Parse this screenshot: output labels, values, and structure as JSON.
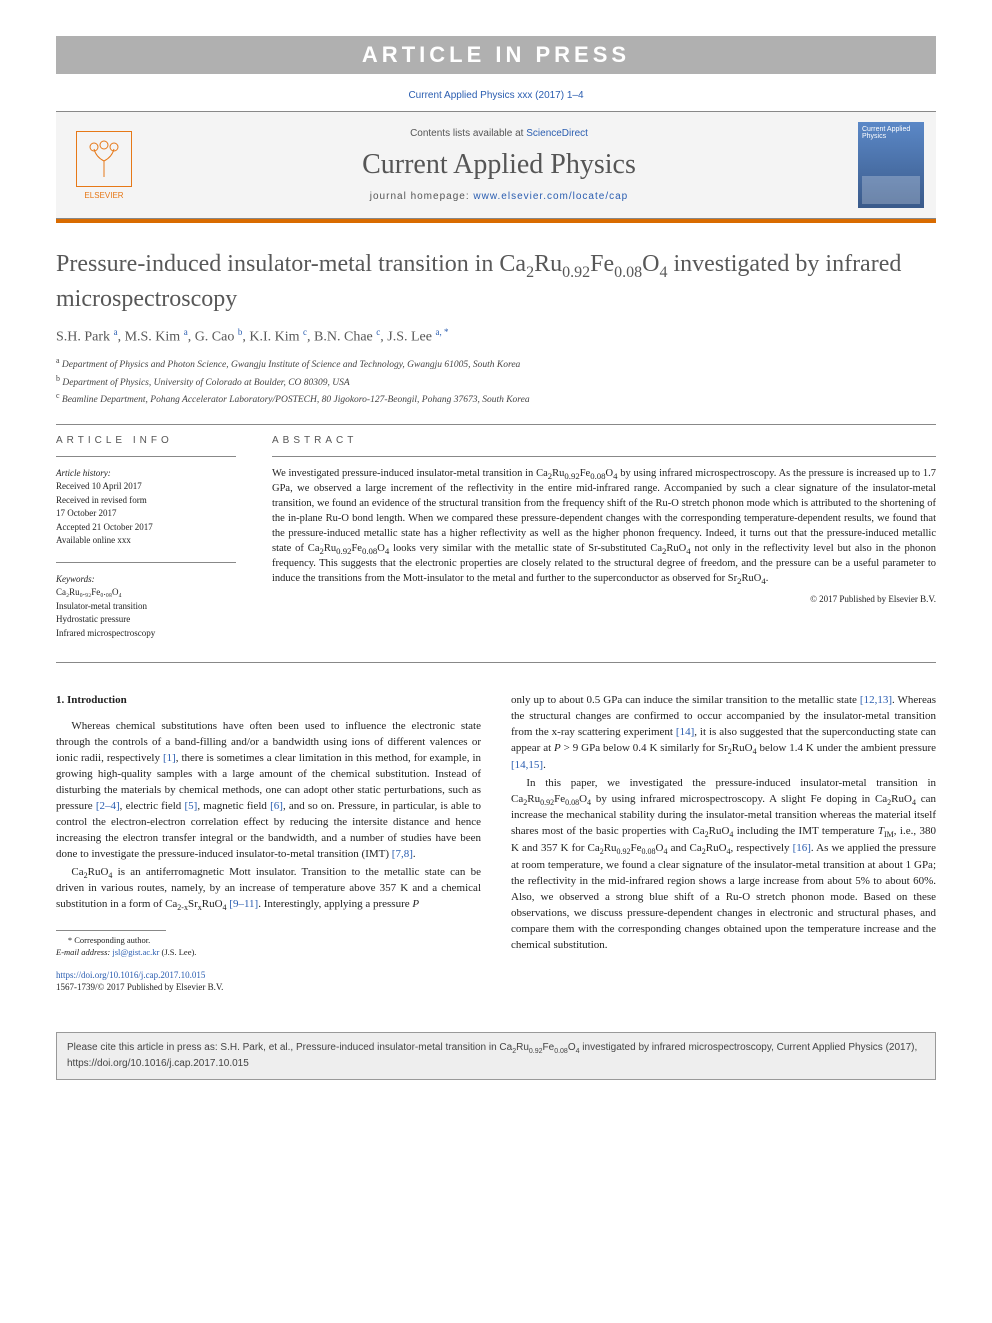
{
  "banner": "ARTICLE IN PRESS",
  "top_citation": "Current Applied Physics xxx (2017) 1–4",
  "header": {
    "contents_prefix": "Contents lists available at ",
    "contents_link": "ScienceDirect",
    "journal": "Current Applied Physics",
    "homepage_prefix": "journal homepage: ",
    "homepage_link": "www.elsevier.com/locate/cap",
    "publisher": "ELSEVIER",
    "cover_title": "Current Applied Physics"
  },
  "title_html": "Pressure-induced insulator-metal transition in Ca<sub>2</sub>Ru<sub>0.92</sub>Fe<sub>0.08</sub>O<sub>4</sub> investigated by infrared microspectroscopy",
  "authors_html": "S.H. Park <sup>a</sup>, M.S. Kim <sup>a</sup>, G. Cao <sup>b</sup>, K.I. Kim <sup>c</sup>, B.N. Chae <sup>c</sup>, J.S. Lee <sup>a, *</sup>",
  "affiliations": [
    {
      "sup": "a",
      "text": "Department of Physics and Photon Science, Gwangju Institute of Science and Technology, Gwangju 61005, South Korea"
    },
    {
      "sup": "b",
      "text": "Department of Physics, University of Colorado at Boulder, CO 80309, USA"
    },
    {
      "sup": "c",
      "text": "Beamline Department, Pohang Accelerator Laboratory/POSTECH, 80 Jigokoro-127-Beongil, Pohang 37673, South Korea"
    }
  ],
  "article_info": {
    "label": "ARTICLE INFO",
    "history_hd": "Article history:",
    "history": [
      "Received 10 April 2017",
      "Received in revised form",
      "17 October 2017",
      "Accepted 21 October 2017",
      "Available online xxx"
    ],
    "keywords_hd": "Keywords:",
    "keywords": [
      "Ca₂Ru₀.₉₂Fe₀.₀₈O₄",
      "Insulator-metal transition",
      "Hydrostatic pressure",
      "Infrared microspectroscopy"
    ]
  },
  "abstract": {
    "label": "ABSTRACT",
    "text_html": "We investigated pressure-induced insulator-metal transition in Ca<sub>2</sub>Ru<sub>0.92</sub>Fe<sub>0.08</sub>O<sub>4</sub> by using infrared microspectroscopy. As the pressure is increased up to 1.7 GPa, we observed a large increment of the reflectivity in the entire mid-infrared range. Accompanied by such a clear signature of the insulator-metal transition, we found an evidence of the structural transition from the frequency shift of the Ru-O stretch phonon mode which is attributed to the shortening of the in-plane Ru-O bond length. When we compared these pressure-dependent changes with the corresponding temperature-dependent results, we found that the pressure-induced metallic state has a higher reflectivity as well as the higher phonon frequency. Indeed, it turns out that the pressure-induced metallic state of Ca<sub>2</sub>Ru<sub>0.92</sub>Fe<sub>0.08</sub>O<sub>4</sub> looks very similar with the metallic state of Sr-substituted Ca<sub>2</sub>RuO<sub>4</sub> not only in the reflectivity level but also in the phonon frequency. This suggests that the electronic properties are closely related to the structural degree of freedom, and the pressure can be a useful parameter to induce the transitions from the Mott-insulator to the metal and further to the superconductor as observed for Sr<sub>2</sub>RuO<sub>4</sub>.",
    "copyright": "© 2017 Published by Elsevier B.V."
  },
  "section1": {
    "heading": "1. Introduction",
    "p1_html": "Whereas chemical substitutions have often been used to influence the electronic state through the controls of a band-filling and/or a bandwidth using ions of different valences or ionic radii, respectively <span class=\"ref\">[1]</span>, there is sometimes a clear limitation in this method, for example, in growing high-quality samples with a large amount of the chemical substitution. Instead of disturbing the materials by chemical methods, one can adopt other static perturbations, such as pressure <span class=\"ref\">[2–4]</span>, electric field <span class=\"ref\">[5]</span>, magnetic field <span class=\"ref\">[6]</span>, and so on. Pressure, in particular, is able to control the electron-electron correlation effect by reducing the intersite distance and hence increasing the electron transfer integral or the bandwidth, and a number of studies have been done to investigate the pressure-induced insulator-to-metal transition (IMT) <span class=\"ref\">[7,8]</span>.",
    "p2_html": "Ca<sub>2</sub>RuO<sub>4</sub> is an antiferromagnetic Mott insulator. Transition to the metallic state can be driven in various routes, namely, by an increase of temperature above 357 K and a chemical substitution in a form of Ca<sub>2-x</sub>Sr<sub>x</sub>RuO<sub>4</sub> <span class=\"ref\">[9–11]</span>. Interestingly, applying a pressure <i>P</i>",
    "p3_html": "only up to about 0.5 GPa can induce the similar transition to the metallic state <span class=\"ref\">[12,13]</span>. Whereas the structural changes are confirmed to occur accompanied by the insulator-metal transition from the x-ray scattering experiment <span class=\"ref\">[14]</span>, it is also suggested that the superconducting state can appear at <i>P</i> &gt; 9 GPa below 0.4 K similarly for Sr<sub>2</sub>RuO<sub>4</sub> below 1.4 K under the ambient pressure <span class=\"ref\">[14,15]</span>.",
    "p4_html": "In this paper, we investigated the pressure-induced insulator-metal transition in Ca<sub>2</sub>Ru<sub>0.92</sub>Fe<sub>0.08</sub>O<sub>4</sub> by using infrared microspectroscopy. A slight Fe doping in Ca<sub>2</sub>RuO<sub>4</sub> can increase the mechanical stability during the insulator-metal transition whereas the material itself shares most of the basic properties with Ca<sub>2</sub>RuO<sub>4</sub> including the IMT temperature <i>T</i><sub>IM</sub>, i.e., 380 K and 357 K for Ca<sub>2</sub>Ru<sub>0.92</sub>Fe<sub>0.08</sub>O<sub>4</sub> and Ca<sub>2</sub>RuO<sub>4</sub>, respectively <span class=\"ref\">[16]</span>. As we applied the pressure at room temperature, we found a clear signature of the insulator-metal transition at about 1 GPa; the reflectivity in the mid-infrared region shows a large increase from about 5% to about 60%. Also, we observed a strong blue shift of a Ru-O stretch phonon mode. Based on these observations, we discuss pressure-dependent changes in electronic and structural phases, and compare them with the corresponding changes obtained upon the temperature increase and the chemical substitution."
  },
  "footnote": {
    "corr": "* Corresponding author.",
    "email_label": "E-mail address:",
    "email": "jsl@gist.ac.kr",
    "email_name": "(J.S. Lee)."
  },
  "doi": {
    "url": "https://doi.org/10.1016/j.cap.2017.10.015",
    "issn_line": "1567-1739/© 2017 Published by Elsevier B.V."
  },
  "citebox_html": "Please cite this article in press as: S.H. Park, et al., Pressure-induced insulator-metal transition in Ca<sub>2</sub>Ru<sub>0.92</sub>Fe<sub>0.08</sub>O<sub>4</sub> investigated by infrared microspectroscopy, Current Applied Physics (2017), https://doi.org/10.1016/j.cap.2017.10.015"
}
